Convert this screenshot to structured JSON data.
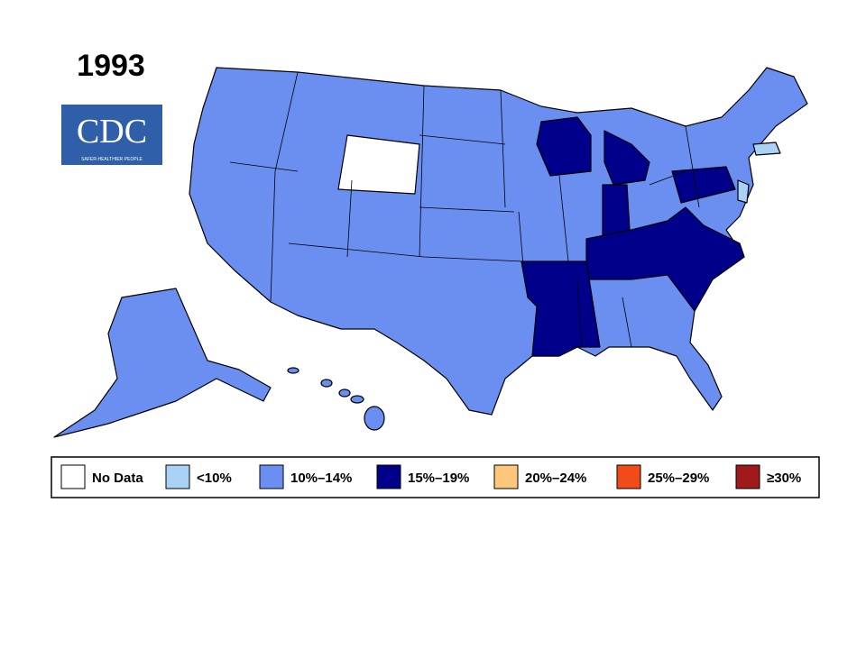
{
  "header": {
    "title": "1993"
  },
  "logo": {
    "text": "CDC",
    "tagline": "SAFER·HEALTHIER·PEOPLE"
  },
  "legend": {
    "items": [
      {
        "label": "No Data",
        "color": "#ffffff"
      },
      {
        "label": "<10%",
        "color": "#a9d2f5"
      },
      {
        "label": "10%–14%",
        "color": "#6a8ff0"
      },
      {
        "label": "15%–19%",
        "color": "#00008b"
      },
      {
        "label": "20%–24%",
        "color": "#fcc77a"
      },
      {
        "label": "25%–29%",
        "color": "#f24b1a"
      },
      {
        "label": "≥30%",
        "color": "#a11a1a"
      }
    ]
  }
}
